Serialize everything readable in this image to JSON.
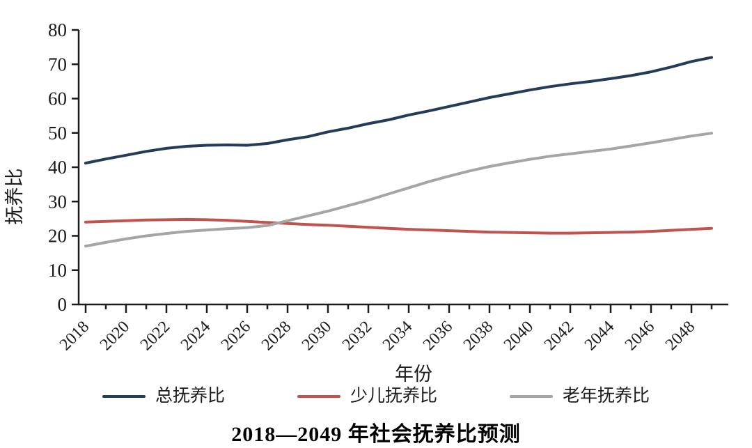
{
  "chart_data": {
    "type": "line",
    "title": "2018—2049 年社会抚养比预测",
    "xlabel": "年份",
    "ylabel": "抚养比",
    "ylim": [
      0,
      80
    ],
    "yticks": [
      0,
      10,
      20,
      30,
      40,
      50,
      60,
      70,
      80
    ],
    "xticks": [
      2018,
      2020,
      2022,
      2024,
      2026,
      2028,
      2030,
      2032,
      2034,
      2036,
      2038,
      2040,
      2042,
      2044,
      2046,
      2048
    ],
    "grid": false,
    "legend_position": "bottom",
    "axis_color": "#1c1c1c",
    "x": [
      2018,
      2019,
      2020,
      2021,
      2022,
      2023,
      2024,
      2025,
      2026,
      2027,
      2028,
      2029,
      2030,
      2031,
      2032,
      2033,
      2034,
      2035,
      2036,
      2037,
      2038,
      2039,
      2040,
      2041,
      2042,
      2043,
      2044,
      2045,
      2046,
      2047,
      2048,
      2049
    ],
    "series": [
      {
        "name": "总抚养比",
        "color": "#253c59",
        "values": [
          41.2,
          42.4,
          43.5,
          44.6,
          45.5,
          46.1,
          46.4,
          46.5,
          46.4,
          46.9,
          48.0,
          48.9,
          50.3,
          51.4,
          52.7,
          53.8,
          55.2,
          56.4,
          57.7,
          59.0,
          60.3,
          61.4,
          62.5,
          63.5,
          64.3,
          65.0,
          65.8,
          66.7,
          67.8,
          69.2,
          70.8,
          72.0
        ]
      },
      {
        "name": "少儿抚养比",
        "color": "#c0534e",
        "values": [
          24.0,
          24.2,
          24.4,
          24.6,
          24.7,
          24.8,
          24.7,
          24.5,
          24.2,
          23.9,
          23.6,
          23.3,
          23.1,
          22.8,
          22.5,
          22.2,
          21.9,
          21.7,
          21.5,
          21.3,
          21.1,
          21.0,
          20.9,
          20.8,
          20.8,
          20.9,
          21.0,
          21.1,
          21.3,
          21.6,
          21.9,
          22.2
        ]
      },
      {
        "name": "老年抚养比",
        "color": "#a5a5a5",
        "values": [
          17.0,
          18.1,
          19.1,
          20.0,
          20.7,
          21.3,
          21.7,
          22.1,
          22.4,
          23.0,
          24.4,
          25.8,
          27.2,
          28.8,
          30.4,
          32.2,
          34.0,
          35.8,
          37.4,
          38.9,
          40.2,
          41.3,
          42.3,
          43.2,
          43.9,
          44.6,
          45.3,
          46.2,
          47.1,
          48.1,
          49.1,
          49.9
        ]
      }
    ]
  }
}
